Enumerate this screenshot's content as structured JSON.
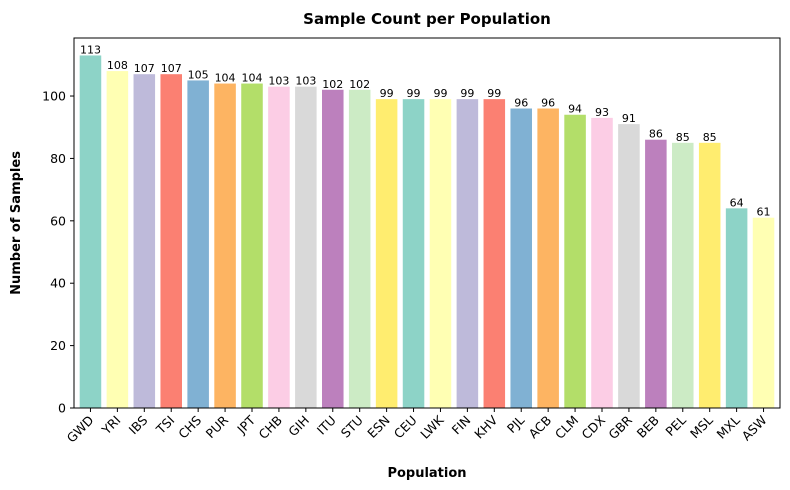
{
  "chart_data": {
    "type": "bar",
    "title": "Sample Count per Population",
    "xlabel": "Population",
    "ylabel": "Number of Samples",
    "ylim": [
      0,
      118.6
    ],
    "yticks": [
      0,
      20,
      40,
      60,
      80,
      100
    ],
    "grid": false,
    "categories": [
      "GWD",
      "YRI",
      "IBS",
      "TSI",
      "CHS",
      "PUR",
      "JPT",
      "CHB",
      "GIH",
      "ITU",
      "STU",
      "ESN",
      "CEU",
      "LWK",
      "FIN",
      "KHV",
      "PJL",
      "ACB",
      "CLM",
      "CDX",
      "GBR",
      "BEB",
      "PEL",
      "MSL",
      "MXL",
      "ASW"
    ],
    "values": [
      113,
      108,
      107,
      107,
      105,
      104,
      104,
      103,
      103,
      102,
      102,
      99,
      99,
      99,
      99,
      99,
      96,
      96,
      94,
      93,
      91,
      86,
      85,
      85,
      64,
      61
    ],
    "bar_labels": [
      "113",
      "108",
      "107",
      "107",
      "105",
      "104",
      "104",
      "103",
      "103",
      "102",
      "102",
      "99",
      "99",
      "99",
      "99",
      "99",
      "96",
      "96",
      "94",
      "93",
      "91",
      "86",
      "85",
      "85",
      "64",
      "61"
    ],
    "palette": [
      "#8dd3c7",
      "#ffffb3",
      "#bebada",
      "#fb8072",
      "#80b1d3",
      "#fdb462",
      "#b3de69",
      "#fccde5",
      "#d9d9d9",
      "#bc80bd",
      "#ccebc5",
      "#ffed6f"
    ]
  }
}
